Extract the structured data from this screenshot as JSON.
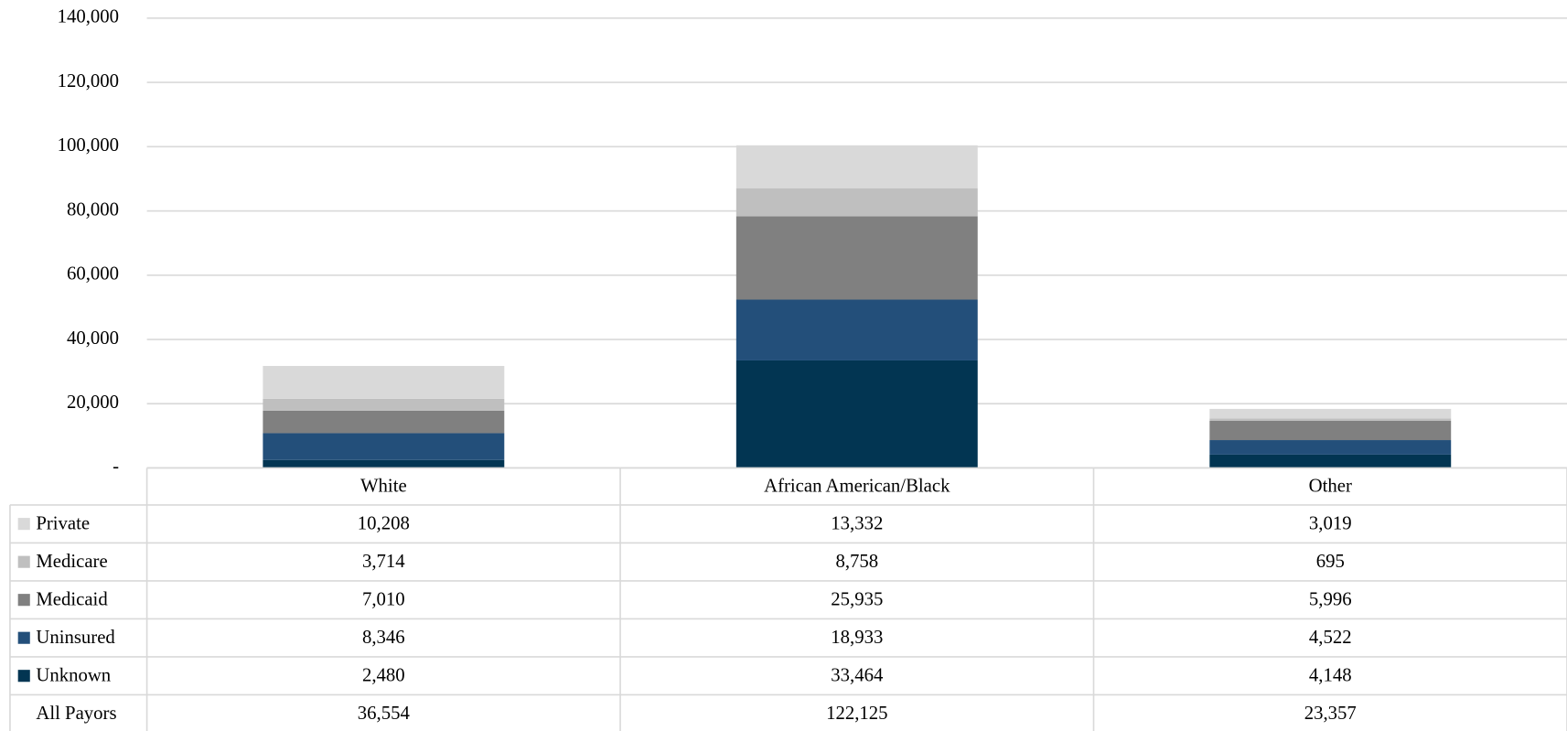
{
  "chart_data": {
    "type": "stacked_bar",
    "categories": [
      "White",
      "African American/Black",
      "Other"
    ],
    "series": [
      {
        "name": "Private",
        "color": "#d9d9d9",
        "values": [
          10208,
          13332,
          3019
        ],
        "value_labels": [
          "10,208",
          "13,332",
          "3,019"
        ]
      },
      {
        "name": "Medicare",
        "color": "#bfbfbf",
        "values": [
          3714,
          8758,
          695
        ],
        "value_labels": [
          "3,714",
          "8,758",
          "695"
        ]
      },
      {
        "name": "Medicaid",
        "color": "#808080",
        "values": [
          7010,
          25935,
          5996
        ],
        "value_labels": [
          "7,010",
          "25,935",
          "5,996"
        ]
      },
      {
        "name": "Uninsured",
        "color": "#234f7a",
        "values": [
          8346,
          18933,
          4522
        ],
        "value_labels": [
          "8,346",
          "18,933",
          "4,522"
        ]
      },
      {
        "name": "Unknown",
        "color": "#023552",
        "values": [
          2480,
          33464,
          4148
        ],
        "value_labels": [
          "2,480",
          "33,464",
          "4,148"
        ]
      }
    ],
    "totals": {
      "name": "All Payors",
      "values": [
        36554,
        122125,
        23357
      ],
      "value_labels": [
        "36,554",
        "122,125",
        "23,357"
      ]
    },
    "ylim": [
      0,
      140000
    ],
    "yticks": [
      {
        "value": 0,
        "label": "-"
      },
      {
        "value": 20000,
        "label": "20,000"
      },
      {
        "value": 40000,
        "label": "40,000"
      },
      {
        "value": 60000,
        "label": "60,000"
      },
      {
        "value": 80000,
        "label": "80,000"
      },
      {
        "value": 100000,
        "label": "100,000"
      },
      {
        "value": 120000,
        "label": "120,000"
      },
      {
        "value": 140000,
        "label": "140,000"
      }
    ],
    "grid": true
  }
}
